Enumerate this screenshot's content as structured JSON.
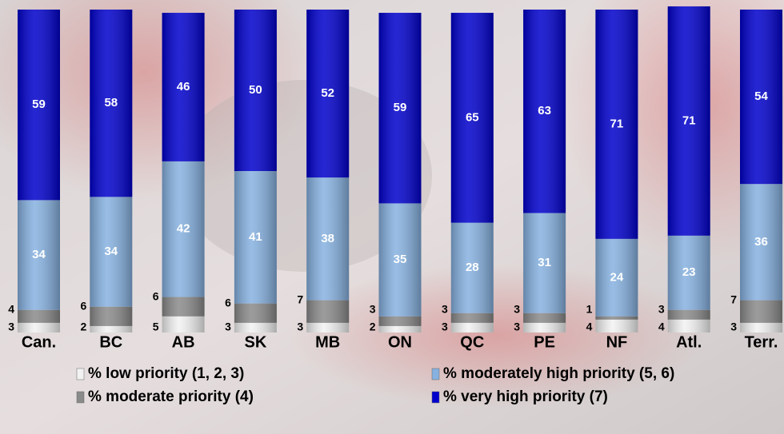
{
  "chart_data": {
    "type": "stacked_bar",
    "categories": [
      "Can.",
      "BC",
      "AB",
      "SK",
      "MB",
      "ON",
      "QC",
      "PE",
      "NF",
      "Atl.",
      "Terr."
    ],
    "series": [
      {
        "name": "% low priority (1, 2, 3)",
        "color": "#f2f2f2",
        "values": [
          3,
          2,
          5,
          3,
          3,
          2,
          3,
          3,
          4,
          4,
          3
        ]
      },
      {
        "name": "% moderate priority (4)",
        "color": "#8a8a8a",
        "values": [
          4,
          6,
          6,
          6,
          7,
          3,
          3,
          3,
          1,
          3,
          7
        ]
      },
      {
        "name": "% moderately high priority (5, 6)",
        "color": "#86b1e0",
        "values": [
          34,
          34,
          42,
          41,
          38,
          35,
          28,
          31,
          24,
          23,
          36
        ]
      },
      {
        "name": "% very high priority (7)",
        "color": "#0000cc",
        "values": [
          59,
          58,
          46,
          50,
          52,
          59,
          65,
          63,
          71,
          71,
          54
        ]
      }
    ]
  }
}
